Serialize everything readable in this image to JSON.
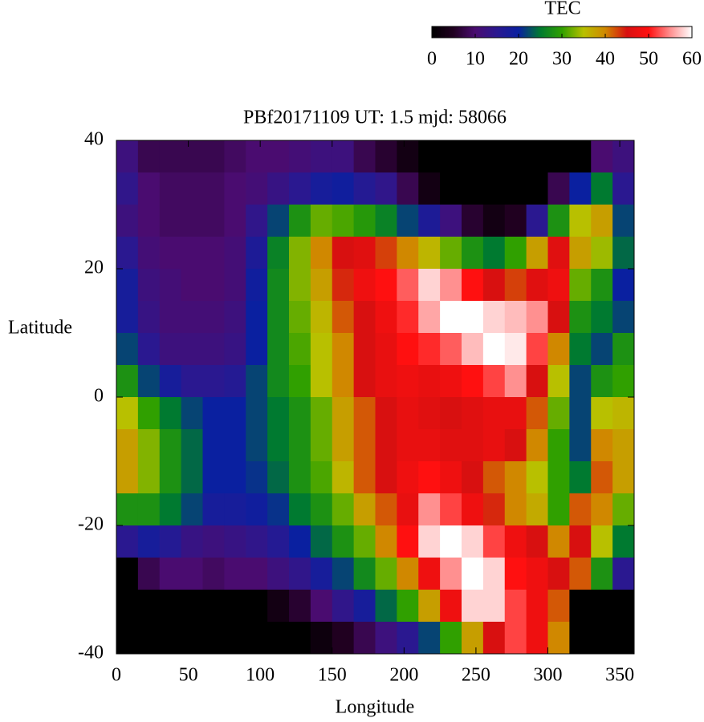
{
  "chart_data": {
    "type": "heatmap",
    "title": "PBf20171109  UT: 1.5  mjd: 58066",
    "x_label": "Longitude",
    "y_label": "Latitude",
    "xlim": [
      0,
      360
    ],
    "ylim": [
      -40,
      40
    ],
    "xticks": [
      0,
      50,
      100,
      150,
      200,
      250,
      300,
      350
    ],
    "yticks": [
      -40,
      -20,
      0,
      20,
      40
    ],
    "x": [
      7.5,
      22.5,
      37.5,
      52.5,
      67.5,
      82.5,
      97.5,
      112.5,
      127.5,
      142.5,
      157.5,
      172.5,
      187.5,
      202.5,
      217.5,
      232.5,
      247.5,
      262.5,
      277.5,
      292.5,
      307.5,
      322.5,
      337.5,
      352.5
    ],
    "y": [
      37.5,
      32.5,
      27.5,
      22.5,
      17.5,
      12.5,
      7.5,
      2.5,
      -2.5,
      -7.5,
      -12.5,
      -17.5,
      -22.5,
      -27.5,
      -32.5,
      -37.5
    ],
    "values": [
      [
        12,
        8,
        8,
        8,
        8,
        9,
        10,
        10,
        11,
        12,
        12,
        8,
        6,
        3,
        0,
        0,
        0,
        0,
        0,
        0,
        0,
        0,
        10,
        12
      ],
      [
        14,
        10,
        9,
        9,
        9,
        10,
        11,
        13,
        15,
        18,
        19,
        16,
        14,
        8,
        3,
        0,
        0,
        0,
        0,
        0,
        8,
        20,
        25,
        15
      ],
      [
        12,
        10,
        9,
        9,
        9,
        10,
        14,
        22,
        28,
        32,
        31,
        29,
        26,
        22,
        17,
        12,
        6,
        3,
        5,
        15,
        28,
        35,
        38,
        22
      ],
      [
        15,
        11,
        10,
        10,
        10,
        11,
        17,
        26,
        33,
        40,
        45,
        46,
        43,
        40,
        36,
        32,
        28,
        25,
        30,
        38,
        46,
        38,
        34,
        24
      ],
      [
        18,
        12,
        11,
        10,
        10,
        11,
        19,
        27,
        33,
        38,
        44,
        48,
        50,
        53,
        58,
        55,
        50,
        45,
        43,
        46,
        48,
        32,
        28,
        20
      ],
      [
        18,
        13,
        11,
        11,
        11,
        12,
        20,
        27,
        32,
        36,
        42,
        45,
        48,
        51,
        56,
        60,
        60,
        58,
        57,
        55,
        45,
        28,
        25,
        22
      ],
      [
        22,
        15,
        12,
        12,
        12,
        13,
        20,
        27,
        31,
        35,
        40,
        45,
        47,
        50,
        51,
        53,
        57,
        60,
        59,
        52,
        40,
        25,
        22,
        28
      ],
      [
        28,
        22,
        18,
        15,
        15,
        16,
        22,
        27,
        30,
        35,
        40,
        45,
        47,
        48,
        47,
        48,
        50,
        52,
        55,
        45,
        35,
        22,
        28,
        30
      ],
      [
        35,
        30,
        25,
        22,
        20,
        20,
        22,
        25,
        28,
        32,
        38,
        42,
        45,
        47,
        46,
        45,
        46,
        47,
        47,
        42,
        32,
        22,
        35,
        36
      ],
      [
        38,
        33,
        28,
        24,
        20,
        20,
        22,
        25,
        28,
        32,
        38,
        42,
        45,
        47,
        47,
        46,
        46,
        47,
        45,
        40,
        30,
        22,
        40,
        38
      ],
      [
        38,
        33,
        28,
        24,
        20,
        20,
        21,
        24,
        28,
        31,
        36,
        42,
        45,
        48,
        50,
        48,
        45,
        42,
        40,
        35,
        30,
        25,
        42,
        38
      ],
      [
        28,
        28,
        25,
        22,
        18,
        18,
        19,
        21,
        25,
        28,
        32,
        38,
        42,
        47,
        55,
        52,
        48,
        44,
        40,
        37,
        30,
        42,
        40,
        32
      ],
      [
        15,
        18,
        16,
        13,
        12,
        13,
        14,
        16,
        20,
        24,
        28,
        32,
        40,
        50,
        58,
        60,
        58,
        52,
        48,
        45,
        40,
        45,
        35,
        25
      ],
      [
        0,
        8,
        10,
        10,
        9,
        10,
        10,
        12,
        14,
        18,
        22,
        27,
        32,
        40,
        48,
        55,
        60,
        58,
        50,
        48,
        45,
        42,
        28,
        15
      ],
      [
        0,
        0,
        0,
        0,
        0,
        0,
        0,
        3,
        6,
        10,
        14,
        18,
        24,
        30,
        38,
        48,
        58,
        58,
        52,
        48,
        42,
        0,
        0,
        0
      ],
      [
        0,
        0,
        0,
        0,
        0,
        0,
        0,
        0,
        0,
        2,
        5,
        8,
        12,
        15,
        22,
        30,
        38,
        45,
        52,
        48,
        40,
        0,
        0,
        0
      ]
    ],
    "colorbar": {
      "label": "TEC",
      "lim": [
        0,
        60
      ],
      "ticks": [
        0,
        10,
        20,
        30,
        40,
        50,
        60
      ],
      "colors": [
        "#000000",
        "#200020",
        "#4a0c70",
        "#2a1890",
        "#0a20a0",
        "#007a30",
        "#30a000",
        "#b8c000",
        "#d08800",
        "#d81010",
        "#ff1010",
        "#ff9090",
        "#ffffff"
      ]
    }
  }
}
